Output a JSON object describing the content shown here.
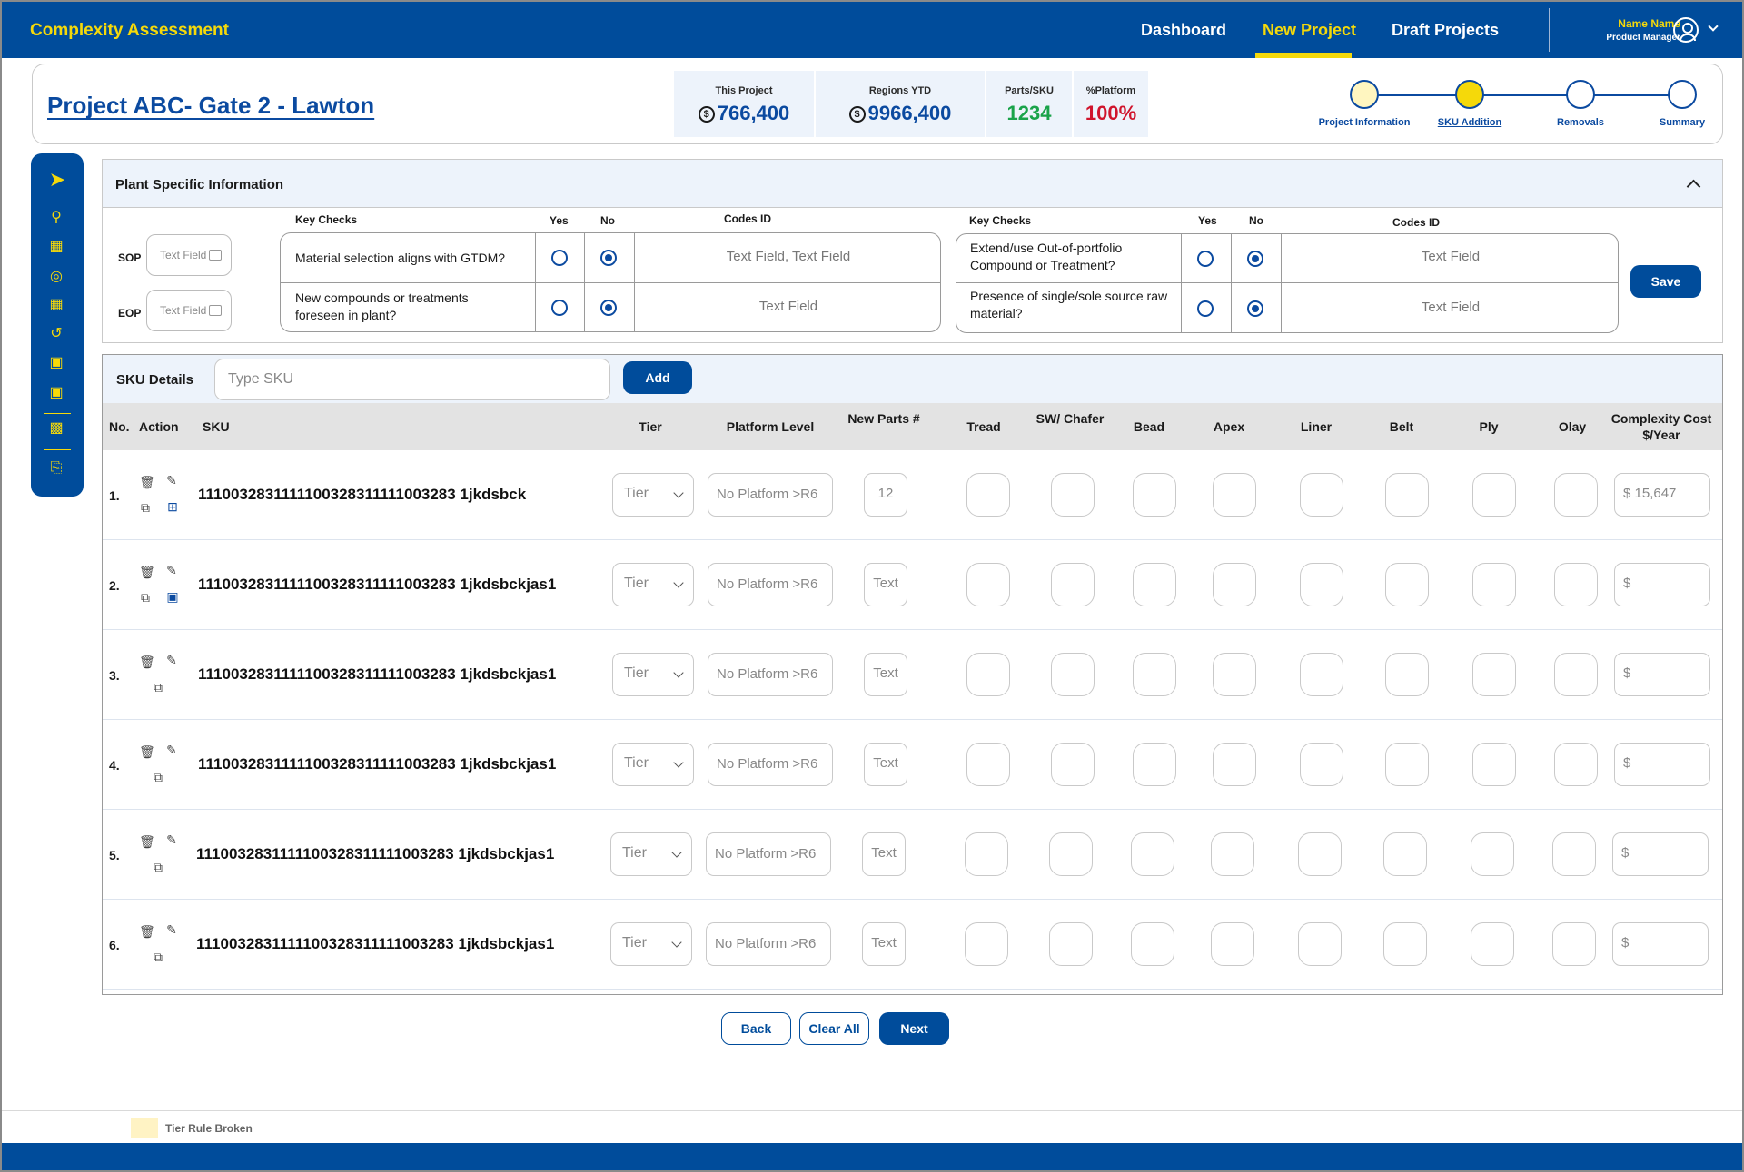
{
  "app": {
    "title": "Complexity Assessment"
  },
  "nav": {
    "items": [
      "Dashboard",
      "New Project",
      "Draft Projects"
    ],
    "active": "New Project"
  },
  "user": {
    "name": "Name Name",
    "role": "Product Manager"
  },
  "project": {
    "title": "Project ABC- Gate 2 - Lawton"
  },
  "stats": [
    {
      "label": "This Project",
      "value": "766,400",
      "currency": "$",
      "color": "#0b4aa0"
    },
    {
      "label": "Regions YTD",
      "value": "9966,400",
      "currency": "$",
      "color": "#0b4aa0"
    },
    {
      "label": "Parts/SKU",
      "value": "1234",
      "color": "#1aa34a"
    },
    {
      "label": "%Platform",
      "value": "100%",
      "color": "#d0142c"
    }
  ],
  "steps": [
    {
      "label": "Project Information",
      "fill": "#fff6c0"
    },
    {
      "label": "SKU Addition",
      "fill": "#f5d90a"
    },
    {
      "label": "Removals",
      "fill": "#ffffff"
    },
    {
      "label": "Summary",
      "fill": "#ffffff"
    }
  ],
  "plant": {
    "title": "Plant Specific Information",
    "sop_label": "SOP",
    "eop_label": "EOP",
    "sop_placeholder": "Text Field",
    "eop_placeholder": "Text Field",
    "col_key_checks": "Key Checks",
    "col_yes": "Yes",
    "col_no": "No",
    "col_codes": "Codes ID",
    "left_checks": [
      {
        "q": "Material selection aligns with GTDM?",
        "codes": "Text Field, Text Field",
        "answer": "no"
      },
      {
        "q": "New compounds or treatments foreseen in plant?",
        "codes": "Text Field",
        "answer": "no"
      }
    ],
    "right_checks": [
      {
        "q": "Extend/use Out-of-portfolio Compound or Treatment?",
        "codes": "Text Field",
        "answer": "no"
      },
      {
        "q": "Presence of single/sole source raw material?",
        "codes": "Text Field",
        "answer": "no"
      }
    ],
    "save_label": "Save"
  },
  "sku": {
    "title": "SKU Details",
    "input_placeholder": "Type SKU",
    "add_label": "Add",
    "columns": [
      "No.",
      "Action",
      "SKU",
      "Tier",
      "Platform Level",
      "New Parts #",
      "Tread",
      "SW/ Chafer",
      "Bead",
      "Apex",
      "Liner",
      "Belt",
      "Ply",
      "Olay",
      "Complexity Cost $/Year"
    ],
    "rows": [
      {
        "no": "1.",
        "sku": "1110032831111100328311111003283 1jkdsbck",
        "tier": "Tier",
        "platform": "No Platform >R6",
        "parts": "12",
        "cost": "$ 15,647",
        "extra": "add-comment"
      },
      {
        "no": "2.",
        "sku": "1110032831111100328311111003283 1jkdsbckjas1",
        "tier": "Tier",
        "platform": "No Platform >R6",
        "parts": "Text",
        "cost": "$",
        "extra": "comment-filled"
      },
      {
        "no": "3.",
        "sku": "1110032831111100328311111003283 1jkdsbckjas1",
        "tier": "Tier",
        "platform": "No Platform >R6",
        "parts": "Text",
        "cost": "$",
        "extra": ""
      },
      {
        "no": "4.",
        "sku": "1110032831111100328311111003283 1jkdsbckjas1",
        "tier": "Tier",
        "platform": "No Platform >R6",
        "parts": "Text",
        "cost": "$",
        "extra": ""
      },
      {
        "no": "5.",
        "sku": "1110032831111100328311111003283 1jkdsbckjas1",
        "tier": "Tier",
        "platform": "No Platform >R6",
        "parts": "Text",
        "cost": "$",
        "extra": ""
      },
      {
        "no": "6.",
        "sku": "1110032831111100328311111003283 1jkdsbckjas1",
        "tier": "Tier",
        "platform": "No Platform >R6",
        "parts": "Text",
        "cost": "$",
        "extra": ""
      }
    ]
  },
  "footer_buttons": {
    "back": "Back",
    "clear": "Clear All",
    "next": "Next"
  },
  "legend": {
    "label": "Tier Rule Broken",
    "color": "#fff3c4"
  }
}
